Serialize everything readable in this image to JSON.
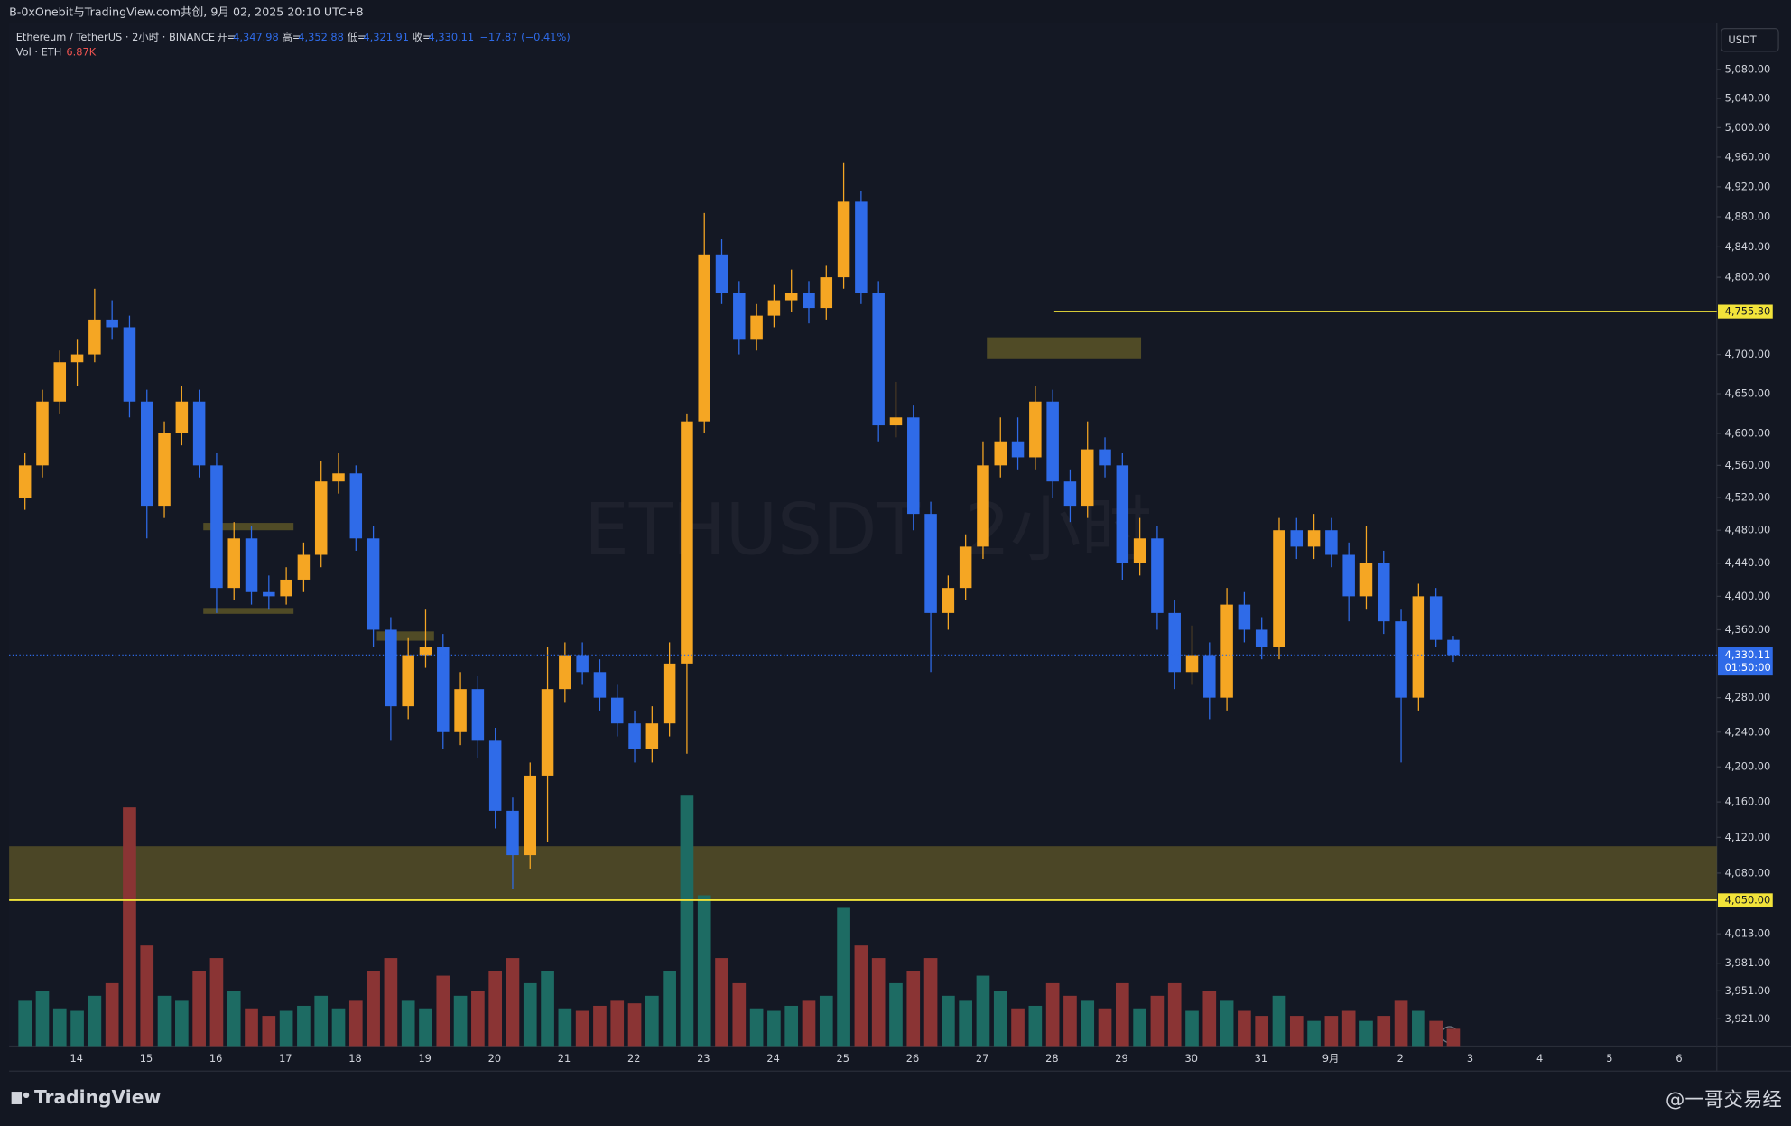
{
  "header": {
    "title": "B-0xOnebit与TradingView.com共创, 9月 02, 2025 20:10 UTC+8",
    "brand": "TradingView",
    "watermark_user": "@一哥交易经"
  },
  "chart_data": {
    "type": "candlestick",
    "title": "Ethereum / TetherUS · 2小时 · BINANCE",
    "watermark": "ETHUSDT, 2小时",
    "legend": [
      {
        "key": "开=",
        "value": "4,347.98"
      },
      {
        "key": "高=",
        "value": "4,352.88"
      },
      {
        "key": "低=",
        "value": "4,321.91"
      },
      {
        "key": "收=",
        "value": "4,330.11"
      }
    ],
    "change": "−17.87 (−0.41%)",
    "volume_title": "Vol · ETH",
    "volume_last": "6.87K",
    "currency": "USDT",
    "up_color": "#f5a623",
    "down_color": "#2f6be8",
    "volume_up_color": "#1d6b63",
    "volume_down_color": "#8a3434",
    "log_scale": true,
    "ylim": [
      3892,
      5145
    ],
    "yticks": [
      {
        "value": 5080,
        "label": "5,080.00"
      },
      {
        "value": 5040,
        "label": "5,040.00"
      },
      {
        "value": 5000,
        "label": "5,000.00"
      },
      {
        "value": 4960,
        "label": "4,960.00"
      },
      {
        "value": 4920,
        "label": "4,920.00"
      },
      {
        "value": 4880,
        "label": "4,880.00"
      },
      {
        "value": 4840,
        "label": "4,840.00"
      },
      {
        "value": 4800,
        "label": "4,800.00"
      },
      {
        "value": 4700,
        "label": "4,700.00"
      },
      {
        "value": 4650,
        "label": "4,650.00"
      },
      {
        "value": 4600,
        "label": "4,600.00"
      },
      {
        "value": 4560,
        "label": "4,560.00"
      },
      {
        "value": 4520,
        "label": "4,520.00"
      },
      {
        "value": 4480,
        "label": "4,480.00"
      },
      {
        "value": 4440,
        "label": "4,440.00"
      },
      {
        "value": 4400,
        "label": "4,400.00"
      },
      {
        "value": 4360,
        "label": "4,360.00"
      },
      {
        "value": 4280,
        "label": "4,280.00"
      },
      {
        "value": 4240,
        "label": "4,240.00"
      },
      {
        "value": 4200,
        "label": "4,200.00"
      },
      {
        "value": 4160,
        "label": "4,160.00"
      },
      {
        "value": 4120,
        "label": "4,120.00"
      },
      {
        "value": 4080,
        "label": "4,080.00"
      },
      {
        "value": 4013,
        "label": "4,013.00"
      },
      {
        "value": 3981,
        "label": "3,981.00"
      },
      {
        "value": 3951,
        "label": "3,951.00"
      },
      {
        "value": 3921,
        "label": "3,921.00"
      }
    ],
    "x": [
      null,
      null,
      null,
      "14",
      null,
      null,
      null,
      "15",
      null,
      null,
      null,
      "16",
      null,
      null,
      null,
      "17",
      null,
      null,
      null,
      "18",
      null,
      null,
      null,
      "19",
      null,
      null,
      null,
      "20",
      null,
      null,
      null,
      "21",
      null,
      null,
      null,
      "22",
      null,
      null,
      null,
      "23",
      null,
      null,
      null,
      "24",
      null,
      null,
      null,
      "25",
      null,
      null,
      null,
      "26",
      null,
      null,
      null,
      "27",
      null,
      null,
      null,
      "28",
      null,
      null,
      null,
      "29",
      null,
      null,
      null,
      "30",
      null,
      null,
      null,
      "31",
      null,
      null,
      null,
      "9月",
      null,
      null,
      null,
      "2",
      null,
      null,
      null
    ],
    "x_future": [
      "3",
      "4",
      "5",
      "6"
    ],
    "ohlc": [
      [
        4520,
        4575,
        4505,
        4560
      ],
      [
        4560,
        4655,
        4545,
        4640
      ],
      [
        4640,
        4705,
        4625,
        4690
      ],
      [
        4690,
        4720,
        4660,
        4700
      ],
      [
        4700,
        4785,
        4690,
        4745
      ],
      [
        4745,
        4770,
        4720,
        4735
      ],
      [
        4735,
        4750,
        4620,
        4640
      ],
      [
        4640,
        4655,
        4470,
        4510
      ],
      [
        4510,
        4615,
        4495,
        4600
      ],
      [
        4600,
        4660,
        4585,
        4640
      ],
      [
        4640,
        4655,
        4545,
        4560
      ],
      [
        4560,
        4575,
        4380,
        4410
      ],
      [
        4410,
        4490,
        4395,
        4470
      ],
      [
        4470,
        4485,
        4390,
        4405
      ],
      [
        4405,
        4425,
        4385,
        4400
      ],
      [
        4400,
        4435,
        4390,
        4420
      ],
      [
        4420,
        4465,
        4405,
        4450
      ],
      [
        4450,
        4565,
        4435,
        4540
      ],
      [
        4540,
        4575,
        4525,
        4550
      ],
      [
        4550,
        4560,
        4455,
        4470
      ],
      [
        4470,
        4485,
        4340,
        4360
      ],
      [
        4360,
        4375,
        4230,
        4270
      ],
      [
        4270,
        4350,
        4255,
        4330
      ],
      [
        4330,
        4385,
        4315,
        4340
      ],
      [
        4340,
        4355,
        4220,
        4240
      ],
      [
        4240,
        4310,
        4225,
        4290
      ],
      [
        4290,
        4305,
        4210,
        4230
      ],
      [
        4230,
        4245,
        4130,
        4150
      ],
      [
        4150,
        4165,
        4062,
        4100
      ],
      [
        4100,
        4205,
        4085,
        4190
      ],
      [
        4190,
        4340,
        4115,
        4290
      ],
      [
        4290,
        4345,
        4275,
        4330
      ],
      [
        4330,
        4345,
        4295,
        4310
      ],
      [
        4310,
        4325,
        4265,
        4280
      ],
      [
        4280,
        4295,
        4235,
        4250
      ],
      [
        4250,
        4265,
        4205,
        4220
      ],
      [
        4220,
        4270,
        4205,
        4250
      ],
      [
        4250,
        4345,
        4235,
        4320
      ],
      [
        4320,
        4625,
        4215,
        4615
      ],
      [
        4615,
        4885,
        4600,
        4830
      ],
      [
        4830,
        4850,
        4765,
        4780
      ],
      [
        4780,
        4795,
        4700,
        4720
      ],
      [
        4720,
        4765,
        4705,
        4750
      ],
      [
        4750,
        4790,
        4735,
        4770
      ],
      [
        4770,
        4810,
        4755,
        4780
      ],
      [
        4780,
        4795,
        4740,
        4760
      ],
      [
        4760,
        4815,
        4745,
        4800
      ],
      [
        4800,
        4953,
        4785,
        4900
      ],
      [
        4900,
        4915,
        4765,
        4780
      ],
      [
        4780,
        4795,
        4590,
        4610
      ],
      [
        4610,
        4665,
        4595,
        4620
      ],
      [
        4620,
        4635,
        4480,
        4500
      ],
      [
        4500,
        4515,
        4310,
        4380
      ],
      [
        4380,
        4425,
        4360,
        4410
      ],
      [
        4410,
        4475,
        4395,
        4460
      ],
      [
        4460,
        4590,
        4445,
        4560
      ],
      [
        4560,
        4620,
        4545,
        4590
      ],
      [
        4590,
        4620,
        4555,
        4570
      ],
      [
        4570,
        4660,
        4555,
        4640
      ],
      [
        4640,
        4655,
        4520,
        4540
      ],
      [
        4540,
        4555,
        4490,
        4510
      ],
      [
        4510,
        4615,
        4495,
        4580
      ],
      [
        4580,
        4595,
        4545,
        4560
      ],
      [
        4560,
        4575,
        4420,
        4440
      ],
      [
        4440,
        4495,
        4425,
        4470
      ],
      [
        4470,
        4485,
        4360,
        4380
      ],
      [
        4380,
        4395,
        4290,
        4310
      ],
      [
        4310,
        4365,
        4295,
        4330
      ],
      [
        4330,
        4345,
        4255,
        4280
      ],
      [
        4280,
        4410,
        4265,
        4390
      ],
      [
        4390,
        4405,
        4345,
        4360
      ],
      [
        4360,
        4375,
        4325,
        4340
      ],
      [
        4340,
        4495,
        4325,
        4480
      ],
      [
        4480,
        4495,
        4445,
        4460
      ],
      [
        4460,
        4500,
        4445,
        4480
      ],
      [
        4480,
        4495,
        4435,
        4450
      ],
      [
        4450,
        4465,
        4370,
        4400
      ],
      [
        4400,
        4485,
        4385,
        4440
      ],
      [
        4440,
        4455,
        4355,
        4370
      ],
      [
        4370,
        4385,
        4205,
        4280
      ],
      [
        4280,
        4415,
        4265,
        4400
      ],
      [
        4400,
        4410,
        4340,
        4347.98
      ],
      [
        4347.98,
        4352.88,
        4321.91,
        4330.11
      ]
    ],
    "volume": [
      18,
      22,
      15,
      14,
      20,
      25,
      95,
      40,
      20,
      18,
      30,
      35,
      22,
      15,
      12,
      14,
      16,
      20,
      15,
      18,
      30,
      35,
      18,
      15,
      28,
      20,
      22,
      30,
      35,
      25,
      30,
      15,
      14,
      16,
      18,
      17,
      20,
      30,
      100,
      60,
      35,
      25,
      15,
      14,
      16,
      18,
      20,
      55,
      40,
      35,
      25,
      30,
      35,
      20,
      18,
      28,
      22,
      15,
      16,
      25,
      20,
      18,
      15,
      25,
      15,
      20,
      25,
      14,
      22,
      18,
      14,
      12,
      20,
      12,
      10,
      12,
      14,
      10,
      12,
      18,
      14,
      10,
      6.87
    ],
    "levels": [
      {
        "value": 4755.3,
        "label": "4,755.30",
        "color": "#f2e33a"
      },
      {
        "value": 4050,
        "label": "4,050.00",
        "color": "#f2e33a"
      }
    ],
    "last": {
      "value": 4330.11,
      "label": "4,330.11",
      "countdown": "01:50:00",
      "color": "#2f6be8"
    },
    "zones": [
      {
        "top": 4110,
        "bottom": 4050,
        "color": "rgba(120,110,40,0.55)"
      },
      {
        "top": 4722,
        "bottom": 4694,
        "color": "rgba(120,110,40,0.6)"
      },
      {
        "top": 4489,
        "bottom": 4480,
        "color": "rgba(120,110,40,0.6)"
      },
      {
        "top": 4386,
        "bottom": 4379,
        "color": "rgba(120,110,40,0.6)"
      },
      {
        "top": 4358,
        "bottom": 4347,
        "color": "rgba(120,110,40,0.6)"
      }
    ]
  }
}
